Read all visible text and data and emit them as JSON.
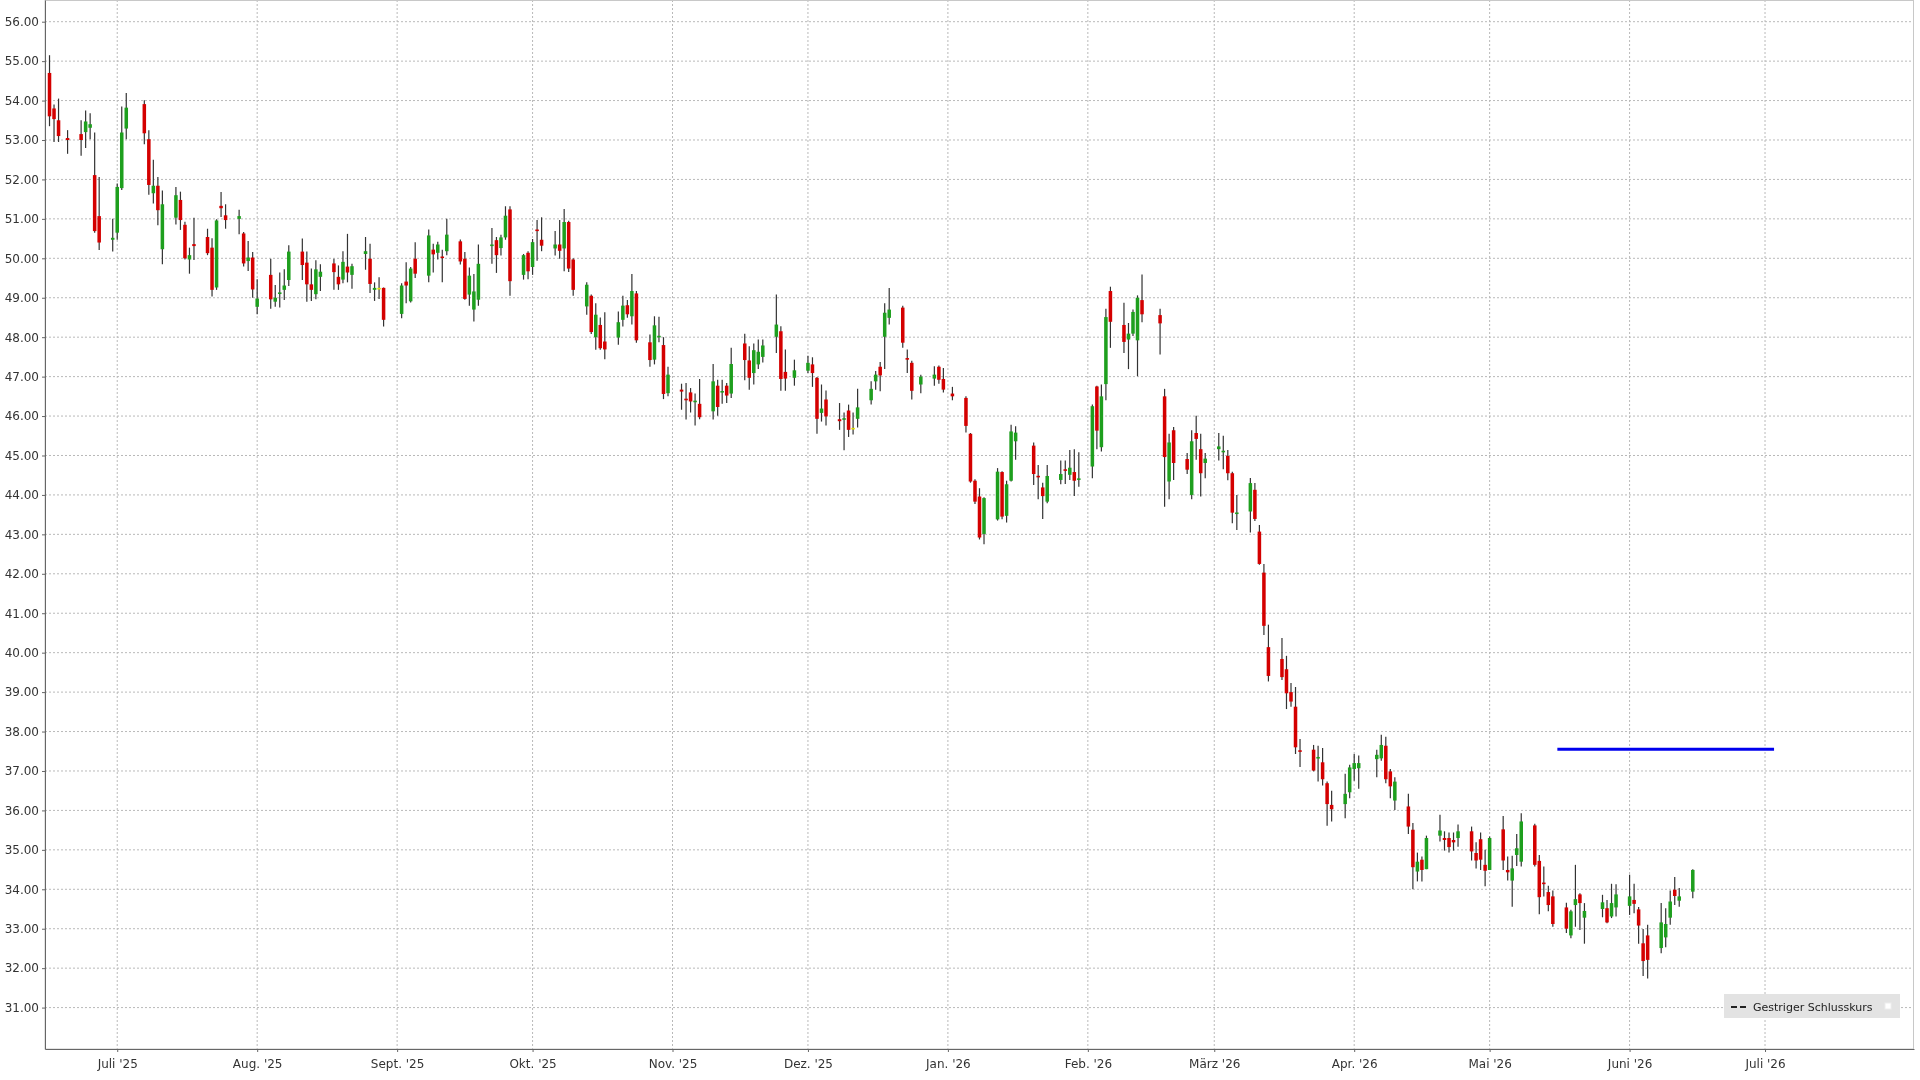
{
  "chart_data": {
    "type": "candlestick",
    "x": [
      "2025-06-16",
      "2025-06-17",
      "2025-06-18",
      "2025-06-20",
      "2025-06-23",
      "2025-06-24",
      "2025-06-25",
      "2025-06-26",
      "2025-06-27",
      "2025-06-30",
      "2025-07-01",
      "2025-07-02",
      "2025-07-03",
      "2025-07-07",
      "2025-07-08",
      "2025-07-09",
      "2025-07-10",
      "2025-07-11",
      "2025-07-14",
      "2025-07-15",
      "2025-07-16",
      "2025-07-17",
      "2025-07-18",
      "2025-07-21",
      "2025-07-22",
      "2025-07-23",
      "2025-07-24",
      "2025-07-25",
      "2025-07-28",
      "2025-07-29",
      "2025-07-30",
      "2025-07-31",
      "2025-08-01",
      "2025-08-04",
      "2025-08-05",
      "2025-08-06",
      "2025-08-07",
      "2025-08-08",
      "2025-08-11",
      "2025-08-12",
      "2025-08-13",
      "2025-08-14",
      "2025-08-15",
      "2025-08-18",
      "2025-08-19",
      "2025-08-20",
      "2025-08-21",
      "2025-08-22",
      "2025-08-25",
      "2025-08-26",
      "2025-08-27",
      "2025-08-28",
      "2025-08-29",
      "2025-09-02",
      "2025-09-03",
      "2025-09-04",
      "2025-09-05",
      "2025-09-08",
      "2025-09-09",
      "2025-09-10",
      "2025-09-11",
      "2025-09-12",
      "2025-09-15",
      "2025-09-16",
      "2025-09-17",
      "2025-09-18",
      "2025-09-19",
      "2025-09-22",
      "2025-09-23",
      "2025-09-24",
      "2025-09-25",
      "2025-09-26",
      "2025-09-29",
      "2025-09-30",
      "2025-10-01",
      "2025-10-02",
      "2025-10-03",
      "2025-10-06",
      "2025-10-07",
      "2025-10-08",
      "2025-10-09",
      "2025-10-10",
      "2025-10-13",
      "2025-10-14",
      "2025-10-15",
      "2025-10-16",
      "2025-10-17",
      "2025-10-20",
      "2025-10-21",
      "2025-10-22",
      "2025-10-23",
      "2025-10-24",
      "2025-10-27",
      "2025-10-28",
      "2025-10-29",
      "2025-10-30",
      "2025-10-31",
      "2025-11-03",
      "2025-11-04",
      "2025-11-05",
      "2025-11-06",
      "2025-11-07",
      "2025-11-10",
      "2025-11-11",
      "2025-11-12",
      "2025-11-13",
      "2025-11-14",
      "2025-11-17",
      "2025-11-18",
      "2025-11-19",
      "2025-11-20",
      "2025-11-21",
      "2025-11-24",
      "2025-11-25",
      "2025-11-26",
      "2025-11-28",
      "2025-12-01",
      "2025-12-02",
      "2025-12-03",
      "2025-12-04",
      "2025-12-05",
      "2025-12-08",
      "2025-12-09",
      "2025-12-10",
      "2025-12-11",
      "2025-12-12",
      "2025-12-15",
      "2025-12-16",
      "2025-12-17",
      "2025-12-18",
      "2025-12-19",
      "2025-12-22",
      "2025-12-23",
      "2025-12-24",
      "2025-12-26",
      "2025-12-29",
      "2025-12-30",
      "2025-12-31",
      "2026-01-02",
      "2026-01-05",
      "2026-01-06",
      "2026-01-07",
      "2026-01-08",
      "2026-01-09",
      "2026-01-12",
      "2026-01-13",
      "2026-01-14",
      "2026-01-15",
      "2026-01-16",
      "2026-01-20",
      "2026-01-21",
      "2026-01-22",
      "2026-01-23",
      "2026-01-26",
      "2026-01-27",
      "2026-01-28",
      "2026-01-29",
      "2026-01-30",
      "2026-02-02",
      "2026-02-03",
      "2026-02-04",
      "2026-02-05",
      "2026-02-06",
      "2026-02-09",
      "2026-02-10",
      "2026-02-11",
      "2026-02-12",
      "2026-02-13",
      "2026-02-17",
      "2026-02-18",
      "2026-02-19",
      "2026-02-20",
      "2026-02-23",
      "2026-02-24",
      "2026-02-25",
      "2026-02-26",
      "2026-02-27",
      "2026-03-02",
      "2026-03-03",
      "2026-03-04",
      "2026-03-05",
      "2026-03-06",
      "2026-03-09",
      "2026-03-10",
      "2026-03-11",
      "2026-03-12",
      "2026-03-13",
      "2026-03-16",
      "2026-03-17",
      "2026-03-18",
      "2026-03-19",
      "2026-03-20",
      "2026-03-23",
      "2026-03-24",
      "2026-03-25",
      "2026-03-26",
      "2026-03-27",
      "2026-03-30",
      "2026-03-31",
      "2026-04-01",
      "2026-04-02",
      "2026-04-06",
      "2026-04-07",
      "2026-04-08",
      "2026-04-09",
      "2026-04-10",
      "2026-04-13",
      "2026-04-14",
      "2026-04-15",
      "2026-04-16",
      "2026-04-17",
      "2026-04-20",
      "2026-04-21",
      "2026-04-22",
      "2026-04-23",
      "2026-04-24",
      "2026-04-27",
      "2026-04-28",
      "2026-04-29",
      "2026-04-30",
      "2026-05-01",
      "2026-05-04",
      "2026-05-05",
      "2026-05-06",
      "2026-05-07",
      "2026-05-08",
      "2026-05-11",
      "2026-05-12",
      "2026-05-13",
      "2026-05-14",
      "2026-05-15",
      "2026-05-18",
      "2026-05-19",
      "2026-05-20",
      "2026-05-21",
      "2026-05-22",
      "2026-05-26",
      "2026-05-27",
      "2026-05-28",
      "2026-05-29",
      "2026-06-01",
      "2026-06-02",
      "2026-06-03",
      "2026-06-04",
      "2026-06-05",
      "2026-06-08",
      "2026-06-09",
      "2026-06-10",
      "2026-06-11",
      "2026-06-12",
      "2026-06-15"
    ],
    "ohlc": [
      [
        54.7,
        55.15,
        53.35,
        53.6
      ],
      [
        53.8,
        53.9,
        52.95,
        53.53
      ],
      [
        53.5,
        54.05,
        52.95,
        53.1
      ],
      [
        53.05,
        53.25,
        52.65,
        53.0
      ],
      [
        53.15,
        53.5,
        52.6,
        53.0
      ],
      [
        53.2,
        53.75,
        52.8,
        53.47
      ],
      [
        53.31,
        53.68,
        53.02,
        53.4
      ],
      [
        52.11,
        53.19,
        50.65,
        50.69
      ],
      [
        51.07,
        52.06,
        50.21,
        50.4
      ],
      [
        50.47,
        51.0,
        50.17,
        50.52
      ],
      [
        50.65,
        51.9,
        50.47,
        51.81
      ],
      [
        51.78,
        53.85,
        51.73,
        53.19
      ],
      [
        53.29,
        54.19,
        53.02,
        53.82
      ],
      [
        53.91,
        54.01,
        52.89,
        53.17
      ],
      [
        53.02,
        53.25,
        51.61,
        51.86
      ],
      [
        51.65,
        52.5,
        51.39,
        51.84
      ],
      [
        51.84,
        52.06,
        50.84,
        51.22
      ],
      [
        50.23,
        51.72,
        49.85,
        51.37
      ],
      [
        51.03,
        51.81,
        50.86,
        51.6
      ],
      [
        51.48,
        51.69,
        50.72,
        50.97
      ],
      [
        50.85,
        50.93,
        49.97,
        50.0
      ],
      [
        49.97,
        50.27,
        49.61,
        50.08
      ],
      [
        50.36,
        51.03,
        49.96,
        50.31
      ],
      [
        50.54,
        50.75,
        50.08,
        50.13
      ],
      [
        50.27,
        50.51,
        49.03,
        49.2
      ],
      [
        49.26,
        50.99,
        49.2,
        50.96
      ],
      [
        51.33,
        51.68,
        51.05,
        51.27
      ],
      [
        51.09,
        51.37,
        50.75,
        50.97
      ],
      [
        51.0,
        51.23,
        50.61,
        51.07
      ],
      [
        50.63,
        50.67,
        49.79,
        49.87
      ],
      [
        49.93,
        50.44,
        49.68,
        50.02
      ],
      [
        50.02,
        50.16,
        49.0,
        49.21
      ],
      [
        48.77,
        49.47,
        48.58,
        48.98
      ],
      [
        49.58,
        49.99,
        48.72,
        48.96
      ],
      [
        48.9,
        49.32,
        48.77,
        49.0
      ],
      [
        49.1,
        49.64,
        48.75,
        49.13
      ],
      [
        49.2,
        49.72,
        48.94,
        49.31
      ],
      [
        49.45,
        50.33,
        49.3,
        50.17
      ],
      [
        50.17,
        50.5,
        49.45,
        49.83
      ],
      [
        49.89,
        50.17,
        48.9,
        49.34
      ],
      [
        49.34,
        49.74,
        48.92,
        49.2
      ],
      [
        49.09,
        49.95,
        48.96,
        49.72
      ],
      [
        49.53,
        49.85,
        49.17,
        49.66
      ],
      [
        49.87,
        49.99,
        49.2,
        49.65
      ],
      [
        49.53,
        49.82,
        49.2,
        49.34
      ],
      [
        49.46,
        50.18,
        49.37,
        49.91
      ],
      [
        49.79,
        50.62,
        49.39,
        49.64
      ],
      [
        49.58,
        49.86,
        49.23,
        49.8
      ],
      [
        50.11,
        50.54,
        49.71,
        50.18
      ],
      [
        49.99,
        50.37,
        49.12,
        49.35
      ],
      [
        49.2,
        49.39,
        48.92,
        49.25
      ],
      [
        49.23,
        49.52,
        48.97,
        49.23
      ],
      [
        49.25,
        49.26,
        48.27,
        48.44
      ],
      [
        48.59,
        49.37,
        48.48,
        49.31
      ],
      [
        49.41,
        49.9,
        48.86,
        49.31
      ],
      [
        48.91,
        49.78,
        48.88,
        49.74
      ],
      [
        49.99,
        50.41,
        49.5,
        49.61
      ],
      [
        49.56,
        50.73,
        49.39,
        50.58
      ],
      [
        50.22,
        50.37,
        49.64,
        50.1
      ],
      [
        50.14,
        50.42,
        49.97,
        50.35
      ],
      [
        50.04,
        50.22,
        49.39,
        50.01
      ],
      [
        50.18,
        51.0,
        50.08,
        50.6
      ],
      [
        50.43,
        50.48,
        49.84,
        49.92
      ],
      [
        49.99,
        50.16,
        48.95,
        48.97
      ],
      [
        49.08,
        49.77,
        48.8,
        49.56
      ],
      [
        48.7,
        49.6,
        48.4,
        49.16
      ],
      [
        48.95,
        50.35,
        48.8,
        49.86
      ],
      [
        50.31,
        50.77,
        49.86,
        50.35
      ],
      [
        50.46,
        50.54,
        49.63,
        50.08
      ],
      [
        50.26,
        50.6,
        50.07,
        50.53
      ],
      [
        50.53,
        51.32,
        50.47,
        51.08
      ],
      [
        51.24,
        51.32,
        49.05,
        49.42
      ],
      [
        49.58,
        50.11,
        49.46,
        50.08
      ],
      [
        50.14,
        50.18,
        49.47,
        49.67
      ],
      [
        49.78,
        50.49,
        49.58,
        50.41
      ],
      [
        50.73,
        50.97,
        49.94,
        50.69
      ],
      [
        50.47,
        51.04,
        50.18,
        50.32
      ],
      [
        50.25,
        50.69,
        50.07,
        50.35
      ],
      [
        50.35,
        50.97,
        49.99,
        50.19
      ],
      [
        50.25,
        51.25,
        49.67,
        50.92
      ],
      [
        50.92,
        50.95,
        49.65,
        49.74
      ],
      [
        49.97,
        50.0,
        49.05,
        49.2
      ],
      [
        48.78,
        49.39,
        48.57,
        49.33
      ],
      [
        49.05,
        49.08,
        48.08,
        48.13
      ],
      [
        48.0,
        48.86,
        47.68,
        48.57
      ],
      [
        48.31,
        48.5,
        47.68,
        47.72
      ],
      [
        47.89,
        48.63,
        47.44,
        47.69
      ],
      [
        47.99,
        48.65,
        47.81,
        48.38
      ],
      [
        48.44,
        49.05,
        48.27,
        48.8
      ],
      [
        48.81,
        48.94,
        48.49,
        48.58
      ],
      [
        48.53,
        49.6,
        48.32,
        49.17
      ],
      [
        49.11,
        49.17,
        47.86,
        47.92
      ],
      [
        47.87,
        48.07,
        47.25,
        47.42
      ],
      [
        47.43,
        48.53,
        47.31,
        48.3
      ],
      [
        48.0,
        48.52,
        47.87,
        48.03
      ],
      [
        47.8,
        48.0,
        46.43,
        46.56
      ],
      [
        46.58,
        47.25,
        46.5,
        47.05
      ],
      [
        46.67,
        46.82,
        46.16,
        46.62
      ],
      [
        46.44,
        46.84,
        45.91,
        46.4
      ],
      [
        46.6,
        46.71,
        46.09,
        46.37
      ],
      [
        46.35,
        46.57,
        45.76,
        46.39
      ],
      [
        46.31,
        46.94,
        45.92,
        45.97
      ],
      [
        46.12,
        47.32,
        45.91,
        46.88
      ],
      [
        46.77,
        46.92,
        46.01,
        46.23
      ],
      [
        46.6,
        46.92,
        46.31,
        46.63
      ],
      [
        46.77,
        46.84,
        46.33,
        46.52
      ],
      [
        46.57,
        47.73,
        46.46,
        47.32
      ],
      [
        47.84,
        48.09,
        46.91,
        47.42
      ],
      [
        47.41,
        47.77,
        46.67,
        46.97
      ],
      [
        47.09,
        47.84,
        46.8,
        47.67
      ],
      [
        47.31,
        47.94,
        47.19,
        47.63
      ],
      [
        47.5,
        47.94,
        47.36,
        47.79
      ],
      [
        48.01,
        49.08,
        47.6,
        48.32
      ],
      [
        48.15,
        48.28,
        46.64,
        46.94
      ],
      [
        47.12,
        47.69,
        46.64,
        46.95
      ],
      [
        46.97,
        47.43,
        46.77,
        47.16
      ],
      [
        47.15,
        47.53,
        47.09,
        47.35
      ],
      [
        47.31,
        47.49,
        46.74,
        47.09
      ],
      [
        46.97,
        46.99,
        45.55,
        45.93
      ],
      [
        46.08,
        46.8,
        45.86,
        46.19
      ],
      [
        46.42,
        46.65,
        45.76,
        45.99
      ],
      [
        45.92,
        46.33,
        45.65,
        45.87
      ],
      [
        45.91,
        46.09,
        45.13,
        45.94
      ],
      [
        46.14,
        46.29,
        45.47,
        45.65
      ],
      [
        45.68,
        46.09,
        45.53,
        45.68
      ],
      [
        45.93,
        46.69,
        45.71,
        46.22
      ],
      [
        46.4,
        46.88,
        46.29,
        46.69
      ],
      [
        46.88,
        47.14,
        46.67,
        47.05
      ],
      [
        47.25,
        47.37,
        46.63,
        47.03
      ],
      [
        48.01,
        48.86,
        47.19,
        48.62
      ],
      [
        48.49,
        49.25,
        48.32,
        48.7
      ],
      [
        48.75,
        48.8,
        47.73,
        47.86
      ],
      [
        47.47,
        47.69,
        47.09,
        47.43
      ],
      [
        47.35,
        47.4,
        46.42,
        46.64
      ],
      [
        46.8,
        47.05,
        46.58,
        47.0
      ],
      [
        46.95,
        47.26,
        46.77,
        47.05
      ],
      [
        47.25,
        47.28,
        46.82,
        46.92
      ],
      [
        46.94,
        47.22,
        46.6,
        46.67
      ],
      [
        46.57,
        46.74,
        46.4,
        46.5
      ],
      [
        46.46,
        46.5,
        45.58,
        45.75
      ],
      [
        45.55,
        45.57,
        44.31,
        44.34
      ],
      [
        44.36,
        44.4,
        43.77,
        43.83
      ],
      [
        43.96,
        44.17,
        42.87,
        42.92
      ],
      [
        43.01,
        43.94,
        42.75,
        43.92
      ],
      [
        43.38,
        44.68,
        43.35,
        44.59
      ],
      [
        44.58,
        44.6,
        43.38,
        43.45
      ],
      [
        43.47,
        44.36,
        43.3,
        44.27
      ],
      [
        44.36,
        45.78,
        44.34,
        45.61
      ],
      [
        45.36,
        45.74,
        44.89,
        45.58
      ],
      [
        45.25,
        45.33,
        44.25,
        44.53
      ],
      [
        44.48,
        44.76,
        43.89,
        44.45
      ],
      [
        44.19,
        44.31,
        43.39,
        43.97
      ],
      [
        43.83,
        44.76,
        43.79,
        44.48
      ],
      [
        44.38,
        44.87,
        44.27,
        44.53
      ],
      [
        44.65,
        44.87,
        44.28,
        44.61
      ],
      [
        44.51,
        45.14,
        44.38,
        44.69
      ],
      [
        44.58,
        45.16,
        43.97,
        44.36
      ],
      [
        44.38,
        45.08,
        44.21,
        44.42
      ],
      [
        44.72,
        46.29,
        44.42,
        46.25
      ],
      [
        46.75,
        46.77,
        45.16,
        45.63
      ],
      [
        45.21,
        46.8,
        45.1,
        46.5
      ],
      [
        46.81,
        48.72,
        46.4,
        48.51
      ],
      [
        49.17,
        49.28,
        47.73,
        48.39
      ],
      [
        48.31,
        48.87,
        47.6,
        47.88
      ],
      [
        47.94,
        48.36,
        47.19,
        48.09
      ],
      [
        48.09,
        48.7,
        48.03,
        48.64
      ],
      [
        47.92,
        49.06,
        47.01,
        49.0
      ],
      [
        48.94,
        49.59,
        48.38,
        48.58
      ],
      [
        48.56,
        48.72,
        47.56,
        48.35
      ],
      [
        46.5,
        46.69,
        43.7,
        44.96
      ],
      [
        44.34,
        45.55,
        43.89,
        45.33
      ],
      [
        45.64,
        45.72,
        44.38,
        44.81
      ],
      [
        44.91,
        45.06,
        44.53,
        44.64
      ],
      [
        44.0,
        45.64,
        43.89,
        45.36
      ],
      [
        45.57,
        46.01,
        44.89,
        45.42
      ],
      [
        45.16,
        45.55,
        43.96,
        44.55
      ],
      [
        44.81,
        45.06,
        44.42,
        44.92
      ],
      [
        45.16,
        45.57,
        44.87,
        45.23
      ],
      [
        45.08,
        45.5,
        44.65,
        45.12
      ],
      [
        44.99,
        45.14,
        44.37,
        44.55
      ],
      [
        44.55,
        44.59,
        43.28,
        43.55
      ],
      [
        43.52,
        44.0,
        43.11,
        43.55
      ],
      [
        43.58,
        44.43,
        43.05,
        44.3
      ],
      [
        44.13,
        44.3,
        43.34,
        43.39
      ],
      [
        43.07,
        43.24,
        42.23,
        42.25
      ],
      [
        42.03,
        42.25,
        40.45,
        40.68
      ],
      [
        40.14,
        40.71,
        39.27,
        39.41
      ],
      [
        39.84,
        40.37,
        39.31,
        39.38
      ],
      [
        39.58,
        39.92,
        38.57,
        38.97
      ],
      [
        39.0,
        39.23,
        38.63,
        38.76
      ],
      [
        38.63,
        39.13,
        37.43,
        37.6
      ],
      [
        37.52,
        37.81,
        37.1,
        37.49
      ],
      [
        37.54,
        37.66,
        36.99,
        37.01
      ],
      [
        37.32,
        37.64,
        36.73,
        37.35
      ],
      [
        37.22,
        37.58,
        36.63,
        36.79
      ],
      [
        36.69,
        36.73,
        35.61,
        36.16
      ],
      [
        36.14,
        36.5,
        35.72,
        36.03
      ],
      [
        36.16,
        36.93,
        35.8,
        36.42
      ],
      [
        36.46,
        37.16,
        36.31,
        37.09
      ],
      [
        37.05,
        37.43,
        36.75,
        37.2
      ],
      [
        37.07,
        37.39,
        36.55,
        37.2
      ],
      [
        37.3,
        37.54,
        36.84,
        37.41
      ],
      [
        37.32,
        37.92,
        37.26,
        37.66
      ],
      [
        37.64,
        37.87,
        36.69,
        36.79
      ],
      [
        36.99,
        37.05,
        36.31,
        36.61
      ],
      [
        36.25,
        36.84,
        36.01,
        36.73
      ],
      [
        36.1,
        36.42,
        35.4,
        35.59
      ],
      [
        35.51,
        35.68,
        34.0,
        34.56
      ],
      [
        34.45,
        34.93,
        34.2,
        34.7
      ],
      [
        34.75,
        34.83,
        34.2,
        34.49
      ],
      [
        34.51,
        35.36,
        34.51,
        35.3
      ],
      [
        35.36,
        35.89,
        35.21,
        35.49
      ],
      [
        35.3,
        35.47,
        34.98,
        35.25
      ],
      [
        35.3,
        35.44,
        34.93,
        35.07
      ],
      [
        35.25,
        35.44,
        34.98,
        35.19
      ],
      [
        35.3,
        35.64,
        35.08,
        35.47
      ],
      [
        35.47,
        35.59,
        34.73,
        34.96
      ],
      [
        34.92,
        35.19,
        34.53,
        34.73
      ],
      [
        35.27,
        35.44,
        34.49,
        34.75
      ],
      [
        34.62,
        35.0,
        34.08,
        34.47
      ],
      [
        34.49,
        35.34,
        34.49,
        35.3
      ],
      [
        35.52,
        35.86,
        34.49,
        34.73
      ],
      [
        34.49,
        34.83,
        34.22,
        34.43
      ],
      [
        34.22,
        34.85,
        33.56,
        34.53
      ],
      [
        34.87,
        35.4,
        34.59,
        35.04
      ],
      [
        34.7,
        35.93,
        34.58,
        35.72
      ],
      [
        35.62,
        35.66,
        34.58,
        34.62
      ],
      [
        34.72,
        34.87,
        33.37,
        33.8
      ],
      [
        34.17,
        34.58,
        33.82,
        34.13
      ],
      [
        33.93,
        34.09,
        33.44,
        33.6
      ],
      [
        33.82,
        33.97,
        33.05,
        33.12
      ],
      [
        33.54,
        33.66,
        32.89,
        33.0
      ],
      [
        32.83,
        33.48,
        32.76,
        33.44
      ],
      [
        33.6,
        34.62,
        33.05,
        33.75
      ],
      [
        33.87,
        33.9,
        32.97,
        33.65
      ],
      [
        33.28,
        33.65,
        32.62,
        33.45
      ],
      [
        33.5,
        33.86,
        33.29,
        33.67
      ],
      [
        33.52,
        33.73,
        33.14,
        33.16
      ],
      [
        33.31,
        34.14,
        33.27,
        33.65
      ],
      [
        33.54,
        34.13,
        33.31,
        33.87
      ],
      [
        33.58,
        34.37,
        33.35,
        33.82
      ],
      [
        33.73,
        34.14,
        33.39,
        33.63
      ],
      [
        33.49,
        33.55,
        32.62,
        33.08
      ],
      [
        32.63,
        32.99,
        31.8,
        32.18
      ],
      [
        32.83,
        33.1,
        31.74,
        32.21
      ],
      [
        32.51,
        33.65,
        32.38,
        33.16
      ],
      [
        32.78,
        33.52,
        32.53,
        33.12
      ],
      [
        33.28,
        33.97,
        33.1,
        33.69
      ],
      [
        33.99,
        34.31,
        33.6,
        33.83
      ],
      [
        33.71,
        34.03,
        33.56,
        33.82
      ],
      [
        33.94,
        34.51,
        33.77,
        34.49
      ]
    ],
    "colors": [
      "#d40000",
      "#d40000",
      "#d40000",
      "#d40000",
      "#d40000",
      "#1e9f1e",
      "#1e9f1e",
      "#d40000",
      "#d40000",
      "#1e9f1e",
      "#1e9f1e",
      "#1e9f1e",
      "#1e9f1e",
      "#d40000",
      "#d40000",
      "#1e9f1e",
      "#d40000",
      "#1e9f1e",
      "#1e9f1e",
      "#d40000",
      "#d40000",
      "#1e9f1e",
      "#d40000",
      "#d40000",
      "#d40000",
      "#1e9f1e",
      "#d40000",
      "#d40000",
      "#1e9f1e",
      "#d40000",
      "#1e9f1e",
      "#d40000",
      "#1e9f1e",
      "#d40000",
      "#1e9f1e",
      "#1e9f1e",
      "#1e9f1e",
      "#1e9f1e",
      "#d40000",
      "#d40000",
      "#d40000",
      "#1e9f1e",
      "#1e9f1e",
      "#d40000",
      "#d40000",
      "#1e9f1e",
      "#d40000",
      "#1e9f1e",
      "#1e9f1e",
      "#d40000",
      "#1e9f1e",
      "#e0e000",
      "#d40000",
      "#1e9f1e",
      "#d40000",
      "#1e9f1e",
      "#d40000",
      "#1e9f1e",
      "#d40000",
      "#1e9f1e",
      "#d40000",
      "#1e9f1e",
      "#d40000",
      "#d40000",
      "#1e9f1e",
      "#1e9f1e",
      "#1e9f1e",
      "#1e9f1e",
      "#d40000",
      "#1e9f1e",
      "#1e9f1e",
      "#d40000",
      "#1e9f1e",
      "#d40000",
      "#1e9f1e",
      "#d40000",
      "#d40000",
      "#1e9f1e",
      "#d40000",
      "#1e9f1e",
      "#d40000",
      "#d40000",
      "#1e9f1e",
      "#d40000",
      "#1e9f1e",
      "#d40000",
      "#d40000",
      "#1e9f1e",
      "#1e9f1e",
      "#d40000",
      "#1e9f1e",
      "#d40000",
      "#d40000",
      "#1e9f1e",
      "#1e9f1e",
      "#d40000",
      "#1e9f1e",
      "#d40000",
      "#d40000",
      "#d40000",
      "#1e9f1e",
      "#d40000",
      "#1e9f1e",
      "#d40000",
      "#1e9f1e",
      "#d40000",
      "#1e9f1e",
      "#d40000",
      "#d40000",
      "#1e9f1e",
      "#1e9f1e",
      "#1e9f1e",
      "#1e9f1e",
      "#d40000",
      "#d40000",
      "#1e9f1e",
      "#1e9f1e",
      "#d40000",
      "#d40000",
      "#1e9f1e",
      "#d40000",
      "#d40000",
      "#1e9f1e",
      "#d40000",
      "#e0e000",
      "#1e9f1e",
      "#1e9f1e",
      "#1e9f1e",
      "#d40000",
      "#1e9f1e",
      "#1e9f1e",
      "#d40000",
      "#d40000",
      "#d40000",
      "#1e9f1e",
      "#1e9f1e",
      "#d40000",
      "#d40000",
      "#d40000",
      "#d40000",
      "#d40000",
      "#d40000",
      "#d40000",
      "#1e9f1e",
      "#1e9f1e",
      "#d40000",
      "#1e9f1e",
      "#1e9f1e",
      "#1e9f1e",
      "#d40000",
      "#d40000",
      "#d40000",
      "#1e9f1e",
      "#1e9f1e",
      "#d40000",
      "#1e9f1e",
      "#d40000",
      "#1e9f1e",
      "#1e9f1e",
      "#d40000",
      "#1e9f1e",
      "#1e9f1e",
      "#d40000",
      "#d40000",
      "#1e9f1e",
      "#1e9f1e",
      "#1e9f1e",
      "#d40000",
      "#d40000",
      "#d40000",
      "#1e9f1e",
      "#d40000",
      "#d40000",
      "#1e9f1e",
      "#d40000",
      "#d40000",
      "#1e9f1e",
      "#1e9f1e",
      "#1e9f1e",
      "#d40000",
      "#d40000",
      "#1e9f1e",
      "#1e9f1e",
      "#d40000",
      "#d40000",
      "#d40000",
      "#d40000",
      "#d40000",
      "#d40000",
      "#d40000",
      "#d40000",
      "#d40000",
      "#d40000",
      "#1e9f1e",
      "#d40000",
      "#d40000",
      "#d40000",
      "#1e9f1e",
      "#1e9f1e",
      "#1e9f1e",
      "#1e9f1e",
      "#1e9f1e",
      "#1e9f1e",
      "#d40000",
      "#d40000",
      "#1e9f1e",
      "#d40000",
      "#d40000",
      "#1e9f1e",
      "#d40000",
      "#1e9f1e",
      "#1e9f1e",
      "#d40000",
      "#d40000",
      "#d40000",
      "#1e9f1e",
      "#d40000",
      "#d40000",
      "#d40000",
      "#d40000",
      "#1e9f1e",
      "#d40000",
      "#d40000",
      "#1e9f1e",
      "#1e9f1e",
      "#1e9f1e",
      "#d40000",
      "#d40000",
      "#d40000",
      "#d40000",
      "#d40000",
      "#d40000",
      "#1e9f1e",
      "#1e9f1e",
      "#d40000",
      "#1e9f1e",
      "#1e9f1e",
      "#d40000",
      "#1e9f1e",
      "#1e9f1e",
      "#1e9f1e",
      "#d40000",
      "#d40000",
      "#d40000",
      "#d40000",
      "#1e9f1e",
      "#1e9f1e",
      "#1e9f1e",
      "#d40000",
      "#1e9f1e",
      "#1e9f1e"
    ],
    "series": [
      {
        "type": "line",
        "color": "#0000ee",
        "x": [
          "2026-05-16",
          "2026-07-03"
        ],
        "values": [
          37.55,
          37.55
        ]
      }
    ],
    "xlim": [
      "2025-06-15",
      "2026-08-03"
    ],
    "xticks": [
      {
        "value": "2025-07-01",
        "label": "Juli '25"
      },
      {
        "value": "2025-08-01",
        "label": "Aug. '25"
      },
      {
        "value": "2025-09-01",
        "label": "Sept. '25"
      },
      {
        "value": "2025-10-01",
        "label": "Okt. '25"
      },
      {
        "value": "2025-11-01",
        "label": "Nov. '25"
      },
      {
        "value": "2025-12-01",
        "label": "Dez. '25"
      },
      {
        "value": "2026-01-01",
        "label": "Jan. '26"
      },
      {
        "value": "2026-02-01",
        "label": "Feb. '26"
      },
      {
        "value": "2026-03-01",
        "label": "März '26"
      },
      {
        "value": "2026-04-01",
        "label": "Apr. '26"
      },
      {
        "value": "2026-05-01",
        "label": "Mai '26"
      },
      {
        "value": "2026-06-01",
        "label": "Juni '26"
      },
      {
        "value": "2026-07-01",
        "label": "Juli '26"
      }
    ],
    "ylim": [
      29.95,
      56.55
    ],
    "yticks": [
      {
        "value": 31,
        "label": "31.00"
      },
      {
        "value": 32,
        "label": "32.00"
      },
      {
        "value": 33,
        "label": "33.00"
      },
      {
        "value": 34,
        "label": "34.00"
      },
      {
        "value": 35,
        "label": "35.00"
      },
      {
        "value": 36,
        "label": "36.00"
      },
      {
        "value": 37,
        "label": "37.00"
      },
      {
        "value": 38,
        "label": "38.00"
      },
      {
        "value": 39,
        "label": "39.00"
      },
      {
        "value": 40,
        "label": "40.00"
      },
      {
        "value": 41,
        "label": "41.00"
      },
      {
        "value": 42,
        "label": "42.00"
      },
      {
        "value": 43,
        "label": "43.00"
      },
      {
        "value": 44,
        "label": "44.00"
      },
      {
        "value": 45,
        "label": "45.00"
      },
      {
        "value": 46,
        "label": "46.00"
      },
      {
        "value": 47,
        "label": "47.00"
      },
      {
        "value": 48,
        "label": "48.00"
      },
      {
        "value": 49,
        "label": "49.00"
      },
      {
        "value": 50,
        "label": "50.00"
      },
      {
        "value": 51,
        "label": "51.00"
      },
      {
        "value": 52,
        "label": "52.00"
      },
      {
        "value": 53,
        "label": "53.00"
      },
      {
        "value": 54,
        "label": "54.00"
      },
      {
        "value": 55,
        "label": "55.00"
      },
      {
        "value": 56,
        "label": "56.00"
      }
    ],
    "grid": true,
    "annotations": [
      "Gestriger Schlusskurs"
    ]
  }
}
